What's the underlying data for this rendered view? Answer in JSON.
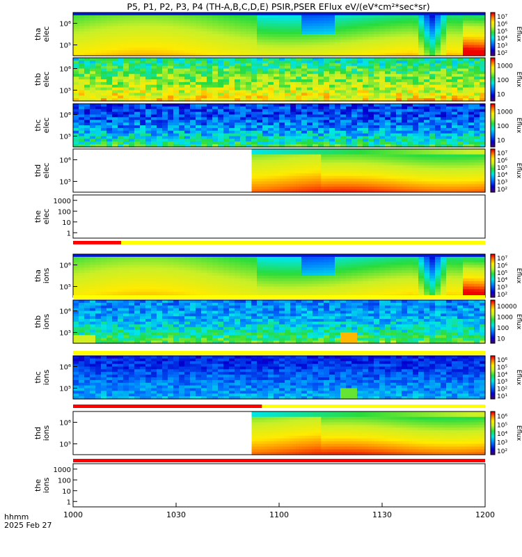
{
  "title": "P5, P1, P2, P3, P4 (TH-A,B,C,D,E) PSIR,PSER EFlux eV/(eV*cm²*sec*sr)",
  "time_label_line1": "hhmm",
  "time_label_line2": "2025 Feb 27",
  "colors": {
    "flag_yellow": "#ffff00",
    "flag_red": "#ff0000",
    "axis": "#000000"
  },
  "chart_data": {
    "type": "heatmap",
    "x_axis": {
      "range": [
        "10:00",
        "12:00"
      ],
      "ticks": [
        "1000",
        "1030",
        "1100",
        "1130",
        "1200"
      ]
    },
    "panels": [
      {
        "probe": "tha",
        "species": "elec",
        "ylabel": [
          "tha",
          "elec"
        ],
        "yscale": "log",
        "y_ticks": [
          "10⁵",
          "10⁶"
        ],
        "colorbar": {
          "label": "Eflux",
          "ticks": [
            "10²",
            "10³",
            "10⁴",
            "10⁵",
            "10⁶",
            "10⁷"
          ]
        },
        "data_start": "10:00",
        "pattern": "tha"
      },
      {
        "probe": "thb",
        "species": "elec",
        "ylabel": [
          "thb",
          "elec"
        ],
        "yscale": "log",
        "y_ticks": [
          "10⁵",
          "10⁶"
        ],
        "colorbar": {
          "label": "Eflux",
          "ticks": [
            "10",
            "100",
            "1000"
          ]
        },
        "data_start": "10:00",
        "pattern": "noise_green"
      },
      {
        "probe": "thc",
        "species": "elec",
        "ylabel": [
          "thc",
          "elec"
        ],
        "yscale": "log",
        "y_ticks": [
          "10⁵",
          "10⁶"
        ],
        "colorbar": {
          "label": "Eflux",
          "ticks": [
            "10",
            "100",
            "1000"
          ]
        },
        "data_start": "10:00",
        "pattern": "noise_blue"
      },
      {
        "probe": "thd",
        "species": "elec",
        "ylabel": [
          "thd",
          "elec"
        ],
        "yscale": "log",
        "y_ticks": [
          "10⁵",
          "10⁶"
        ],
        "colorbar": {
          "label": "Eflux",
          "ticks": [
            "10²",
            "10³",
            "10⁴",
            "10⁵",
            "10⁶",
            "10⁷"
          ]
        },
        "data_start": "10:52",
        "pattern": "thd"
      },
      {
        "probe": "the",
        "species": "elec",
        "ylabel": [
          "the",
          "elec"
        ],
        "yscale": "log",
        "y_ticks": [
          "1",
          "10",
          "100",
          "1000"
        ],
        "colorbar": null,
        "data_start": null,
        "pattern": "empty"
      },
      {
        "probe": "tha",
        "species": "ions",
        "ylabel": [
          "tha",
          "ions"
        ],
        "yscale": "log",
        "y_ticks": [
          "10⁵",
          "10⁶"
        ],
        "colorbar": {
          "label": "Eflux",
          "ticks": [
            "10²",
            "10³",
            "10⁴",
            "10⁵",
            "10⁶",
            "10⁷"
          ]
        },
        "data_start": "10:00",
        "pattern": "tha"
      },
      {
        "probe": "thb",
        "species": "ions",
        "ylabel": [
          "thb",
          "ions"
        ],
        "yscale": "log",
        "y_ticks": [
          "10⁵",
          "10⁶"
        ],
        "colorbar": {
          "label": "Eflux",
          "ticks": [
            "10",
            "100",
            "1000",
            "10000"
          ]
        },
        "data_start": "10:00",
        "pattern": "thb_ions"
      },
      {
        "probe": "thc",
        "species": "ions",
        "ylabel": [
          "thc",
          "ions"
        ],
        "yscale": "log",
        "y_ticks": [
          "10⁵",
          "10⁶"
        ],
        "colorbar": {
          "label": "Eflux",
          "ticks": [
            "10¹",
            "10²",
            "10³",
            "10⁴",
            "10⁵",
            "10⁶"
          ]
        },
        "data_start": "10:00",
        "pattern": "thc_ions"
      },
      {
        "probe": "thd",
        "species": "ions",
        "ylabel": [
          "thd",
          "ions"
        ],
        "yscale": "log",
        "y_ticks": [
          "10⁵",
          "10⁶"
        ],
        "colorbar": {
          "label": "Eflux",
          "ticks": [
            "10²",
            "10³",
            "10⁴",
            "10⁵",
            "10⁶"
          ]
        },
        "data_start": "10:52",
        "pattern": "thd"
      },
      {
        "probe": "the",
        "species": "ions",
        "ylabel": [
          "the",
          "ions"
        ],
        "yscale": "log",
        "y_ticks": [
          "1",
          "10",
          "100",
          "1000"
        ],
        "colorbar": null,
        "data_start": null,
        "pattern": "empty"
      }
    ],
    "flag_bars": [
      {
        "after_panel": "the elec",
        "red_until": "10:14"
      },
      {
        "after_panel": "tha ions",
        "red_until": null
      },
      {
        "after_panel": "thb ions",
        "red_until": null
      },
      {
        "after_panel": "thc ions",
        "red_until": "10:55"
      },
      {
        "after_panel": "thd ions",
        "red_until": "12:00"
      }
    ]
  }
}
